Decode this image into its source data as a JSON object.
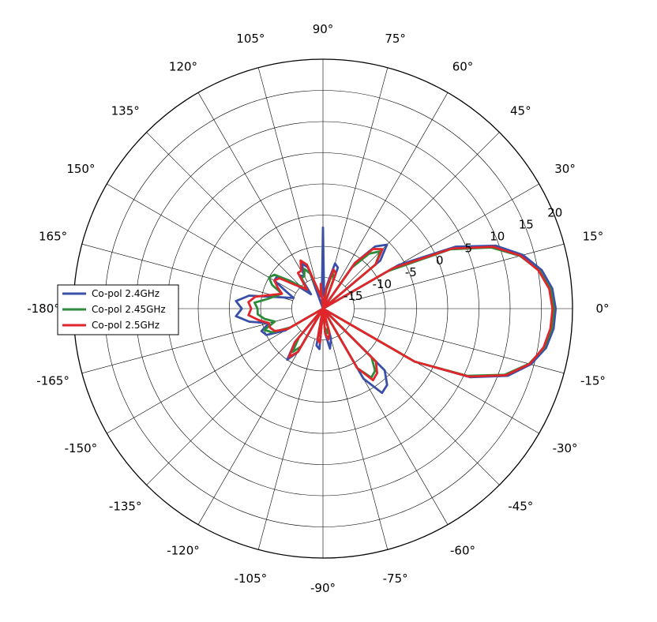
{
  "chart_data": {
    "type": "polar-line",
    "title": "",
    "radial_axis": {
      "min": -20,
      "max": 20,
      "ticks": [
        -15,
        -10,
        -5,
        0,
        5,
        10,
        15,
        20
      ],
      "tick_labels": [
        "-15",
        "-10",
        "-5",
        "0",
        "5",
        "10",
        "15",
        "20"
      ],
      "tick_label_angle_deg": 22.5
    },
    "angular_axis": {
      "step_deg": 15,
      "ticks": [
        0,
        15,
        30,
        45,
        60,
        75,
        90,
        105,
        120,
        135,
        150,
        165,
        180,
        -165,
        -150,
        -135,
        -120,
        -105,
        -90,
        -75,
        -60,
        -45,
        -30,
        -15
      ],
      "tick_labels": [
        "0°",
        "15°",
        "30°",
        "45°",
        "60°",
        "75°",
        "90°",
        "105°",
        "120°",
        "135°",
        "150°",
        "165°",
        "-180°",
        "-165°",
        "-150°",
        "-135°",
        "-120°",
        "-105°",
        "-90°",
        "-75°",
        "-60°",
        "-45°",
        "-30°",
        "-15°"
      ]
    },
    "grid": true,
    "legend": {
      "position": "left"
    },
    "series": [
      {
        "name": "Co-pol 2.4GHz",
        "color": "#3a4fa8",
        "points": [
          [
            0,
            17.3
          ],
          [
            5,
            16.9
          ],
          [
            10,
            15.6
          ],
          [
            15,
            13.2
          ],
          [
            20,
            9.5
          ],
          [
            25,
            3.5
          ],
          [
            30,
            -6
          ],
          [
            35,
            -20
          ],
          [
            40,
            -8
          ],
          [
            45,
            -5.5
          ],
          [
            50,
            -7
          ],
          [
            55,
            -11
          ],
          [
            60,
            -20
          ],
          [
            70,
            -13
          ],
          [
            75,
            -12.5
          ],
          [
            80,
            -16
          ],
          [
            85,
            -18
          ],
          [
            90,
            -7
          ],
          [
            95,
            -18
          ],
          [
            100,
            -20
          ],
          [
            110,
            -13
          ],
          [
            115,
            -12
          ],
          [
            120,
            -14
          ],
          [
            125,
            -13.5
          ],
          [
            130,
            -17
          ],
          [
            140,
            -13
          ],
          [
            145,
            -11
          ],
          [
            150,
            -11
          ],
          [
            155,
            -13.5
          ],
          [
            160,
            -15
          ],
          [
            170,
            -8
          ],
          [
            175,
            -6
          ],
          [
            180,
            -7
          ],
          [
            185,
            -6
          ],
          [
            190,
            -8
          ],
          [
            195,
            -11
          ],
          [
            200,
            -9.5
          ],
          [
            205,
            -10
          ],
          [
            210,
            -13
          ],
          [
            220,
            -20
          ],
          [
            230,
            -13
          ],
          [
            235,
            -10
          ],
          [
            240,
            -12
          ],
          [
            250,
            -20
          ],
          [
            260,
            -14
          ],
          [
            265,
            -13.5
          ],
          [
            270,
            -20
          ],
          [
            275,
            -16
          ],
          [
            280,
            -13.5
          ],
          [
            285,
            -15
          ],
          [
            290,
            -20
          ],
          [
            300,
            -7
          ],
          [
            305,
            -3.5
          ],
          [
            310,
            -4
          ],
          [
            315,
            -6
          ],
          [
            325,
            -20
          ],
          [
            330,
            -3
          ],
          [
            335,
            6
          ],
          [
            340,
            11.5
          ],
          [
            345,
            14.5
          ],
          [
            350,
            16.3
          ],
          [
            355,
            17.1
          ],
          [
            360,
            17.3
          ]
        ]
      },
      {
        "name": "Co-pol 2.45GHz",
        "color": "#2c8c3a",
        "points": [
          [
            0,
            17
          ],
          [
            5,
            16.6
          ],
          [
            10,
            15.2
          ],
          [
            15,
            12.7
          ],
          [
            20,
            8.7
          ],
          [
            25,
            2.5
          ],
          [
            30,
            -8
          ],
          [
            35,
            -20
          ],
          [
            40,
            -9
          ],
          [
            45,
            -7
          ],
          [
            50,
            -8.5
          ],
          [
            55,
            -12
          ],
          [
            60,
            -20
          ],
          [
            70,
            -15
          ],
          [
            75,
            -14
          ],
          [
            80,
            -17
          ],
          [
            85,
            -20
          ],
          [
            90,
            -20
          ],
          [
            95,
            -17
          ],
          [
            100,
            -18
          ],
          [
            110,
            -14
          ],
          [
            115,
            -13
          ],
          [
            120,
            -14
          ],
          [
            125,
            -14
          ],
          [
            130,
            -16
          ],
          [
            140,
            -13
          ],
          [
            145,
            -10.5
          ],
          [
            150,
            -10
          ],
          [
            155,
            -11
          ],
          [
            160,
            -13
          ],
          [
            170,
            -11
          ],
          [
            175,
            -9
          ],
          [
            180,
            -9.5
          ],
          [
            185,
            -9.5
          ],
          [
            190,
            -10.5
          ],
          [
            195,
            -12
          ],
          [
            200,
            -10
          ],
          [
            205,
            -11
          ],
          [
            210,
            -14
          ],
          [
            220,
            -20
          ],
          [
            230,
            -14
          ],
          [
            235,
            -11.5
          ],
          [
            240,
            -13
          ],
          [
            250,
            -20
          ],
          [
            260,
            -16
          ],
          [
            265,
            -15.5
          ],
          [
            270,
            -20
          ],
          [
            275,
            -17
          ],
          [
            280,
            -16
          ],
          [
            285,
            -17
          ],
          [
            290,
            -20
          ],
          [
            300,
            -9
          ],
          [
            305,
            -6.5
          ],
          [
            310,
            -7
          ],
          [
            315,
            -9
          ],
          [
            325,
            -20
          ],
          [
            330,
            -3
          ],
          [
            335,
            5.5
          ],
          [
            340,
            11
          ],
          [
            345,
            14.2
          ],
          [
            350,
            16
          ],
          [
            355,
            16.8
          ],
          [
            360,
            17
          ]
        ]
      },
      {
        "name": "Co-pol 2.5GHz",
        "color": "#e0262b",
        "points": [
          [
            0,
            16.8
          ],
          [
            5,
            16.4
          ],
          [
            10,
            15.1
          ],
          [
            15,
            12.8
          ],
          [
            20,
            9
          ],
          [
            25,
            2.8
          ],
          [
            30,
            -7
          ],
          [
            35,
            -20
          ],
          [
            40,
            -9
          ],
          [
            45,
            -6.5
          ],
          [
            50,
            -7.5
          ],
          [
            55,
            -11
          ],
          [
            60,
            -20
          ],
          [
            70,
            -14
          ],
          [
            75,
            -13.5
          ],
          [
            80,
            -16.5
          ],
          [
            85,
            -19
          ],
          [
            90,
            -20
          ],
          [
            95,
            -16
          ],
          [
            100,
            -18
          ],
          [
            110,
            -12.5
          ],
          [
            115,
            -11.5
          ],
          [
            120,
            -13
          ],
          [
            125,
            -13
          ],
          [
            130,
            -16
          ],
          [
            140,
            -14
          ],
          [
            145,
            -11.5
          ],
          [
            150,
            -11
          ],
          [
            155,
            -12
          ],
          [
            160,
            -13
          ],
          [
            170,
            -9
          ],
          [
            175,
            -8
          ],
          [
            180,
            -8.5
          ],
          [
            185,
            -8
          ],
          [
            190,
            -9.5
          ],
          [
            195,
            -11
          ],
          [
            200,
            -11
          ],
          [
            205,
            -11.5
          ],
          [
            210,
            -13.5
          ],
          [
            220,
            -20
          ],
          [
            230,
            -13
          ],
          [
            235,
            -10.5
          ],
          [
            240,
            -12
          ],
          [
            250,
            -20
          ],
          [
            260,
            -15
          ],
          [
            265,
            -14.5
          ],
          [
            270,
            -20
          ],
          [
            275,
            -16
          ],
          [
            280,
            -15
          ],
          [
            285,
            -16
          ],
          [
            290,
            -20
          ],
          [
            300,
            -9
          ],
          [
            305,
            -6
          ],
          [
            310,
            -6.5
          ],
          [
            315,
            -8
          ],
          [
            325,
            -20
          ],
          [
            330,
            -3
          ],
          [
            335,
            5.8
          ],
          [
            340,
            11.2
          ],
          [
            345,
            14.3
          ],
          [
            350,
            15.9
          ],
          [
            355,
            16.6
          ],
          [
            360,
            16.8
          ]
        ]
      }
    ]
  }
}
